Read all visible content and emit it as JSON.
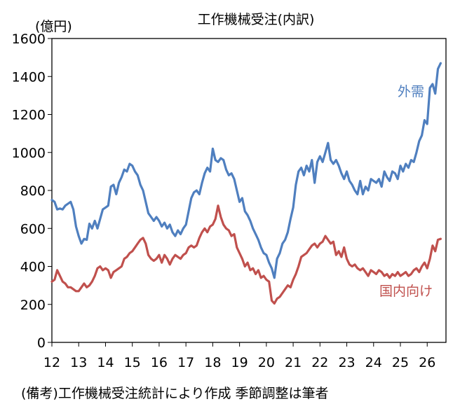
{
  "chart_data": {
    "type": "line",
    "title": "工作機械受注(内訳)",
    "ylabel": "(億円)",
    "ylim": [
      0,
      1600
    ],
    "yticks": [
      0,
      200,
      400,
      600,
      800,
      1000,
      1200,
      1400,
      1600
    ],
    "xlim": [
      12,
      26.7
    ],
    "xticks": [
      "12",
      "13",
      "14",
      "15",
      "16",
      "17",
      "18",
      "19",
      "20",
      "21",
      "22",
      "23",
      "24",
      "25",
      "26"
    ],
    "grid": false,
    "footnote": "(備考)工作機械受注統計により作成 季節調整は筆者",
    "series": [
      {
        "name": "外需",
        "color": "#4f7fbf",
        "points": [
          [
            12.0,
            750
          ],
          [
            12.1,
            740
          ],
          [
            12.2,
            700
          ],
          [
            12.3,
            705
          ],
          [
            12.4,
            700
          ],
          [
            12.5,
            720
          ],
          [
            12.6,
            730
          ],
          [
            12.7,
            740
          ],
          [
            12.8,
            700
          ],
          [
            12.9,
            610
          ],
          [
            13.0,
            560
          ],
          [
            13.1,
            520
          ],
          [
            13.2,
            545
          ],
          [
            13.3,
            540
          ],
          [
            13.4,
            625
          ],
          [
            13.5,
            600
          ],
          [
            13.6,
            640
          ],
          [
            13.7,
            600
          ],
          [
            13.8,
            650
          ],
          [
            13.9,
            700
          ],
          [
            14.0,
            710
          ],
          [
            14.1,
            720
          ],
          [
            14.2,
            820
          ],
          [
            14.3,
            830
          ],
          [
            14.4,
            780
          ],
          [
            14.5,
            840
          ],
          [
            14.6,
            870
          ],
          [
            14.7,
            910
          ],
          [
            14.8,
            900
          ],
          [
            14.9,
            940
          ],
          [
            15.0,
            930
          ],
          [
            15.1,
            900
          ],
          [
            15.2,
            880
          ],
          [
            15.3,
            830
          ],
          [
            15.4,
            800
          ],
          [
            15.5,
            740
          ],
          [
            15.6,
            680
          ],
          [
            15.7,
            660
          ],
          [
            15.8,
            640
          ],
          [
            15.9,
            660
          ],
          [
            16.0,
            640
          ],
          [
            16.1,
            610
          ],
          [
            16.2,
            630
          ],
          [
            16.3,
            600
          ],
          [
            16.4,
            620
          ],
          [
            16.5,
            580
          ],
          [
            16.6,
            560
          ],
          [
            16.7,
            590
          ],
          [
            16.8,
            570
          ],
          [
            16.9,
            600
          ],
          [
            17.0,
            620
          ],
          [
            17.1,
            690
          ],
          [
            17.2,
            760
          ],
          [
            17.3,
            790
          ],
          [
            17.4,
            800
          ],
          [
            17.5,
            780
          ],
          [
            17.6,
            840
          ],
          [
            17.7,
            890
          ],
          [
            17.8,
            920
          ],
          [
            17.9,
            900
          ],
          [
            18.0,
            1020
          ],
          [
            18.1,
            960
          ],
          [
            18.2,
            950
          ],
          [
            18.3,
            970
          ],
          [
            18.4,
            960
          ],
          [
            18.5,
            910
          ],
          [
            18.6,
            880
          ],
          [
            18.7,
            890
          ],
          [
            18.8,
            860
          ],
          [
            18.9,
            800
          ],
          [
            19.0,
            740
          ],
          [
            19.1,
            760
          ],
          [
            19.2,
            690
          ],
          [
            19.3,
            670
          ],
          [
            19.4,
            640
          ],
          [
            19.5,
            600
          ],
          [
            19.6,
            570
          ],
          [
            19.7,
            540
          ],
          [
            19.8,
            500
          ],
          [
            19.9,
            470
          ],
          [
            20.0,
            460
          ],
          [
            20.1,
            420
          ],
          [
            20.2,
            390
          ],
          [
            20.3,
            340
          ],
          [
            20.4,
            440
          ],
          [
            20.5,
            470
          ],
          [
            20.6,
            520
          ],
          [
            20.7,
            540
          ],
          [
            20.8,
            580
          ],
          [
            20.9,
            650
          ],
          [
            21.0,
            710
          ],
          [
            21.1,
            830
          ],
          [
            21.2,
            900
          ],
          [
            21.3,
            920
          ],
          [
            21.4,
            880
          ],
          [
            21.5,
            930
          ],
          [
            21.6,
            900
          ],
          [
            21.7,
            960
          ],
          [
            21.8,
            840
          ],
          [
            21.9,
            950
          ],
          [
            22.0,
            980
          ],
          [
            22.1,
            950
          ],
          [
            22.2,
            1000
          ],
          [
            22.3,
            1050
          ],
          [
            22.4,
            960
          ],
          [
            22.5,
            940
          ],
          [
            22.6,
            960
          ],
          [
            22.7,
            930
          ],
          [
            22.8,
            890
          ],
          [
            22.9,
            860
          ],
          [
            23.0,
            900
          ],
          [
            23.1,
            850
          ],
          [
            23.2,
            830
          ],
          [
            23.3,
            800
          ],
          [
            23.4,
            780
          ],
          [
            23.5,
            850
          ],
          [
            23.6,
            780
          ],
          [
            23.7,
            820
          ],
          [
            23.8,
            800
          ],
          [
            23.9,
            860
          ],
          [
            24.0,
            850
          ],
          [
            24.1,
            840
          ],
          [
            24.2,
            860
          ],
          [
            24.3,
            820
          ],
          [
            24.4,
            900
          ],
          [
            24.5,
            870
          ],
          [
            24.6,
            850
          ],
          [
            24.7,
            900
          ],
          [
            24.8,
            890
          ],
          [
            24.9,
            860
          ],
          [
            25.0,
            930
          ],
          [
            25.1,
            900
          ],
          [
            25.2,
            940
          ],
          [
            25.3,
            920
          ],
          [
            25.4,
            960
          ],
          [
            25.5,
            950
          ],
          [
            25.6,
            1000
          ],
          [
            25.7,
            1060
          ],
          [
            25.8,
            1090
          ],
          [
            25.9,
            1170
          ],
          [
            26.0,
            1150
          ],
          [
            26.1,
            1340
          ],
          [
            26.2,
            1360
          ],
          [
            26.3,
            1310
          ],
          [
            26.4,
            1440
          ],
          [
            26.5,
            1470
          ]
        ]
      },
      {
        "name": "国内向け",
        "color": "#c0504d",
        "points": [
          [
            12.0,
            320
          ],
          [
            12.1,
            330
          ],
          [
            12.2,
            380
          ],
          [
            12.3,
            350
          ],
          [
            12.4,
            320
          ],
          [
            12.5,
            310
          ],
          [
            12.6,
            290
          ],
          [
            12.7,
            290
          ],
          [
            12.8,
            280
          ],
          [
            12.9,
            270
          ],
          [
            13.0,
            270
          ],
          [
            13.1,
            290
          ],
          [
            13.2,
            310
          ],
          [
            13.3,
            290
          ],
          [
            13.4,
            300
          ],
          [
            13.5,
            320
          ],
          [
            13.6,
            350
          ],
          [
            13.7,
            390
          ],
          [
            13.8,
            400
          ],
          [
            13.9,
            380
          ],
          [
            14.0,
            390
          ],
          [
            14.1,
            380
          ],
          [
            14.2,
            340
          ],
          [
            14.3,
            370
          ],
          [
            14.4,
            380
          ],
          [
            14.5,
            390
          ],
          [
            14.6,
            400
          ],
          [
            14.7,
            440
          ],
          [
            14.8,
            450
          ],
          [
            14.9,
            470
          ],
          [
            15.0,
            480
          ],
          [
            15.1,
            500
          ],
          [
            15.2,
            520
          ],
          [
            15.3,
            540
          ],
          [
            15.4,
            550
          ],
          [
            15.5,
            520
          ],
          [
            15.6,
            460
          ],
          [
            15.7,
            440
          ],
          [
            15.8,
            430
          ],
          [
            15.9,
            440
          ],
          [
            16.0,
            460
          ],
          [
            16.1,
            420
          ],
          [
            16.2,
            460
          ],
          [
            16.3,
            440
          ],
          [
            16.4,
            410
          ],
          [
            16.5,
            440
          ],
          [
            16.6,
            460
          ],
          [
            16.7,
            450
          ],
          [
            16.8,
            440
          ],
          [
            16.9,
            460
          ],
          [
            17.0,
            470
          ],
          [
            17.1,
            500
          ],
          [
            17.2,
            510
          ],
          [
            17.3,
            500
          ],
          [
            17.4,
            510
          ],
          [
            17.5,
            550
          ],
          [
            17.6,
            580
          ],
          [
            17.7,
            600
          ],
          [
            17.8,
            580
          ],
          [
            17.9,
            610
          ],
          [
            18.0,
            620
          ],
          [
            18.1,
            650
          ],
          [
            18.2,
            720
          ],
          [
            18.3,
            660
          ],
          [
            18.4,
            620
          ],
          [
            18.5,
            600
          ],
          [
            18.6,
            590
          ],
          [
            18.7,
            560
          ],
          [
            18.8,
            570
          ],
          [
            18.9,
            500
          ],
          [
            19.0,
            470
          ],
          [
            19.1,
            440
          ],
          [
            19.2,
            400
          ],
          [
            19.3,
            420
          ],
          [
            19.4,
            380
          ],
          [
            19.5,
            390
          ],
          [
            19.6,
            360
          ],
          [
            19.7,
            380
          ],
          [
            19.8,
            340
          ],
          [
            19.9,
            350
          ],
          [
            20.0,
            330
          ],
          [
            20.1,
            320
          ],
          [
            20.2,
            220
          ],
          [
            20.3,
            205
          ],
          [
            20.4,
            230
          ],
          [
            20.5,
            240
          ],
          [
            20.6,
            260
          ],
          [
            20.7,
            280
          ],
          [
            20.8,
            300
          ],
          [
            20.9,
            290
          ],
          [
            21.0,
            330
          ],
          [
            21.1,
            360
          ],
          [
            21.2,
            400
          ],
          [
            21.3,
            450
          ],
          [
            21.4,
            460
          ],
          [
            21.5,
            470
          ],
          [
            21.6,
            490
          ],
          [
            21.7,
            510
          ],
          [
            21.8,
            520
          ],
          [
            21.9,
            500
          ],
          [
            22.0,
            520
          ],
          [
            22.1,
            530
          ],
          [
            22.2,
            560
          ],
          [
            22.3,
            540
          ],
          [
            22.4,
            520
          ],
          [
            22.5,
            530
          ],
          [
            22.6,
            460
          ],
          [
            22.7,
            480
          ],
          [
            22.8,
            450
          ],
          [
            22.9,
            500
          ],
          [
            23.0,
            440
          ],
          [
            23.1,
            410
          ],
          [
            23.2,
            400
          ],
          [
            23.3,
            410
          ],
          [
            23.4,
            390
          ],
          [
            23.5,
            380
          ],
          [
            23.6,
            390
          ],
          [
            23.7,
            370
          ],
          [
            23.8,
            350
          ],
          [
            23.9,
            380
          ],
          [
            24.0,
            370
          ],
          [
            24.1,
            360
          ],
          [
            24.2,
            380
          ],
          [
            24.3,
            370
          ],
          [
            24.4,
            350
          ],
          [
            24.5,
            360
          ],
          [
            24.6,
            340
          ],
          [
            24.7,
            360
          ],
          [
            24.8,
            350
          ],
          [
            24.9,
            370
          ],
          [
            25.0,
            350
          ],
          [
            25.1,
            360
          ],
          [
            25.2,
            370
          ],
          [
            25.3,
            350
          ],
          [
            25.4,
            360
          ],
          [
            25.5,
            380
          ],
          [
            25.6,
            390
          ],
          [
            25.7,
            370
          ],
          [
            25.8,
            400
          ],
          [
            25.9,
            420
          ],
          [
            26.0,
            390
          ],
          [
            26.1,
            440
          ],
          [
            26.2,
            510
          ],
          [
            26.3,
            480
          ],
          [
            26.4,
            540
          ],
          [
            26.5,
            545
          ]
        ]
      }
    ]
  }
}
